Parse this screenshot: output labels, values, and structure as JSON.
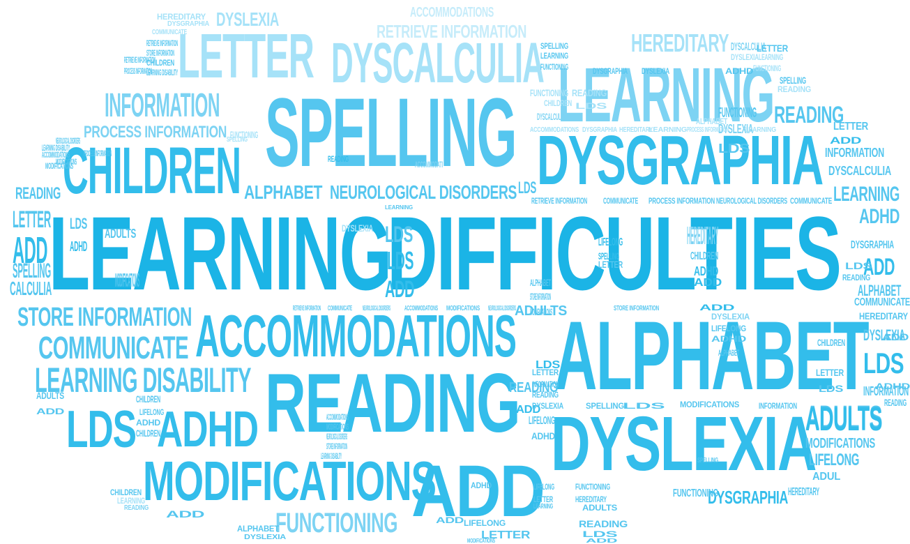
{
  "words": [
    {
      "text": "LEARNING",
      "style": "c1"
    },
    {
      "text": "DIFFICULTIES",
      "style": "c1"
    },
    {
      "text": "SPELLING",
      "style": "c3"
    },
    {
      "text": "LEARNING",
      "style": "c4"
    },
    {
      "text": "DYSGRAPHIA",
      "style": "c2"
    },
    {
      "text": "CHILDREN",
      "style": "c2"
    },
    {
      "text": "LETTER",
      "style": "c5"
    },
    {
      "text": "DYSCALCULIA",
      "style": "c5"
    },
    {
      "text": "INFORMATION",
      "style": "c4"
    },
    {
      "text": "ALPHABET",
      "style": "c2"
    },
    {
      "text": "ACCOMMODATIONS",
      "style": "c2"
    },
    {
      "text": "READING",
      "style": "c2"
    },
    {
      "text": "DYSLEXIA",
      "style": "c2"
    },
    {
      "text": "MODIFICATIONS",
      "style": "c2"
    },
    {
      "text": "ADD",
      "style": "c2"
    },
    {
      "text": "LDS",
      "style": "c2"
    },
    {
      "text": "ADHD",
      "style": "c2"
    },
    {
      "text": "STORE INFORMATION",
      "style": "c3"
    },
    {
      "text": "COMMUNICATE",
      "style": "c3"
    },
    {
      "text": "LEARNING DISABILITY",
      "style": "c3"
    },
    {
      "text": "ADULTS",
      "style": "c3"
    },
    {
      "text": "LIFELONG",
      "style": "c3"
    },
    {
      "text": "FUNCTIONING",
      "style": "c4"
    },
    {
      "text": "DYSLEXIA",
      "style": "c5"
    },
    {
      "text": "RETRIEVE INFORMATION",
      "style": "c6"
    },
    {
      "text": "ACCOMMODATIONS",
      "style": "c6"
    },
    {
      "text": "HEREDITARY",
      "style": "c5"
    },
    {
      "text": "PROCESS INFORMATION",
      "style": "c4"
    },
    {
      "text": "ALPHABET",
      "style": "c3"
    },
    {
      "text": "NEUROLOGICAL DISORDERS",
      "style": "c3"
    },
    {
      "text": "READING",
      "style": "c3"
    },
    {
      "text": "LEARNING",
      "style": "c3"
    },
    {
      "text": "INFORMATION",
      "style": "c3"
    },
    {
      "text": "DYSCALCULIA",
      "style": "c3"
    },
    {
      "text": "ADHD",
      "style": "c3"
    },
    {
      "text": "DYSGRAPHIA",
      "style": "c3"
    },
    {
      "text": "ADD",
      "style": "c2"
    },
    {
      "text": "ALPHABET",
      "style": "c3"
    },
    {
      "text": "COMMUNICATE",
      "style": "c3"
    },
    {
      "text": "HEREDITARY",
      "style": "c3"
    },
    {
      "text": "DYSLEXIA",
      "style": "c3"
    },
    {
      "text": "CHILDREN",
      "style": "c3"
    },
    {
      "text": "LDS",
      "style": "c2"
    },
    {
      "text": "LETTER",
      "style": "c3"
    },
    {
      "text": "INFORMATION",
      "style": "c3"
    },
    {
      "text": "READING",
      "style": "c3"
    },
    {
      "text": "ADULTS",
      "style": "c2"
    },
    {
      "text": "MODIFICATIONS",
      "style": "c3"
    },
    {
      "text": "LIFELONG",
      "style": "c3"
    },
    {
      "text": "ADUL",
      "style": "c3"
    },
    {
      "text": "DYSGRAPHIA",
      "style": "c2"
    },
    {
      "text": "HEREDITARY",
      "style": "c3"
    },
    {
      "text": "FUNCTIONING",
      "style": "c3"
    },
    {
      "text": "SPELLING",
      "style": "c3"
    },
    {
      "text": "LDS",
      "style": "c3"
    },
    {
      "text": "RETRIEVE INFORMATION",
      "style": "c3"
    },
    {
      "text": "COMMUNICATE",
      "style": "c3"
    },
    {
      "text": "PROCESS INFORMATION",
      "style": "c3"
    },
    {
      "text": "NEUROLOGICAL DISORDERS",
      "style": "c3"
    },
    {
      "text": "COMMUNICATE",
      "style": "c3"
    },
    {
      "text": "LEARNING",
      "style": "c3"
    },
    {
      "text": "LDS",
      "style": "c3"
    },
    {
      "text": "LDS",
      "style": "c2"
    },
    {
      "text": "ADD",
      "style": "c2"
    },
    {
      "text": "SPELLING",
      "style": "c3"
    },
    {
      "text": "CALCULIA",
      "style": "c3"
    },
    {
      "text": "READING",
      "style": "c3"
    },
    {
      "text": "LETTER",
      "style": "c3"
    },
    {
      "text": "ADD",
      "style": "c2"
    },
    {
      "text": "ADULTS",
      "style": "c3"
    },
    {
      "text": "LDS",
      "style": "c3"
    },
    {
      "text": "ADHD",
      "style": "c2"
    },
    {
      "text": "FUNCTIONING",
      "style": "c3"
    },
    {
      "text": "DYSLEXIA",
      "style": "c4"
    },
    {
      "text": "LDS",
      "style": "c3"
    },
    {
      "text": "DYSCALCULIA",
      "style": "c4"
    },
    {
      "text": "HEREDITARY",
      "style": "c4"
    },
    {
      "text": "CHILDREN",
      "style": "c3"
    },
    {
      "text": "ADHD",
      "style": "c2"
    },
    {
      "text": "ADD",
      "style": "c2"
    },
    {
      "text": "LIFELONG",
      "style": "c2"
    },
    {
      "text": "SPELLING",
      "style": "c2"
    },
    {
      "text": "LETTER",
      "style": "c3"
    },
    {
      "text": "ALPHABET",
      "style": "c3"
    },
    {
      "text": "STORE INFORMATION",
      "style": "c3"
    },
    {
      "text": "MODIFICATIONS",
      "style": "c3"
    },
    {
      "text": "ADD",
      "style": "c2"
    },
    {
      "text": "DYSLEXIA",
      "style": "c4"
    },
    {
      "text": "LIFELONG",
      "style": "c3"
    },
    {
      "text": "ADHD",
      "style": "c3"
    },
    {
      "text": "ALPHABET",
      "style": "c3"
    },
    {
      "text": "ADULTS",
      "style": "c3"
    },
    {
      "text": "LDS",
      "style": "c2"
    },
    {
      "text": "READING",
      "style": "c3"
    },
    {
      "text": "ADD",
      "style": "c2"
    },
    {
      "text": "LIFELONG",
      "style": "c3"
    },
    {
      "text": "ADHD",
      "style": "c3"
    },
    {
      "text": "MODIFICATIONS",
      "style": "c3"
    },
    {
      "text": "ADULTS",
      "style": "c3"
    },
    {
      "text": "CHILDREN",
      "style": "c3"
    },
    {
      "text": "LIFELONG",
      "style": "c3"
    },
    {
      "text": "ADHD",
      "style": "c3"
    },
    {
      "text": "ADD",
      "style": "c3"
    },
    {
      "text": "CHILDREN",
      "style": "c3"
    },
    {
      "text": "ACCOMMODATIONS",
      "style": "c3"
    },
    {
      "text": "MODIFICATIONS",
      "style": "c3"
    },
    {
      "text": "NEUROLOGICAL DISORDERS",
      "style": "c3"
    },
    {
      "text": "STORE INFORMATION",
      "style": "c3"
    },
    {
      "text": "LEARNING DISABILITY",
      "style": "c3"
    },
    {
      "text": "LETTER",
      "style": "c3"
    },
    {
      "text": "INFORMATION",
      "style": "c3"
    },
    {
      "text": "READING",
      "style": "c3"
    },
    {
      "text": "DYSLEXIA",
      "style": "c3"
    },
    {
      "text": "SPELLING",
      "style": "c3"
    },
    {
      "text": "LDS",
      "style": "c3"
    },
    {
      "text": "MODIFICATIONS",
      "style": "c3"
    },
    {
      "text": "INFORMATION",
      "style": "c3"
    },
    {
      "text": "LDS",
      "style": "c3"
    },
    {
      "text": "ADD",
      "style": "c3"
    },
    {
      "text": "ADHD",
      "style": "c3"
    },
    {
      "text": "LIFELONG",
      "style": "c3"
    },
    {
      "text": "LETTER",
      "style": "c3"
    },
    {
      "text": "LEARNING",
      "style": "c3"
    },
    {
      "text": "FUNCTIONING",
      "style": "c3"
    },
    {
      "text": "HEREDITARY",
      "style": "c3"
    },
    {
      "text": "ADULTS",
      "style": "c3"
    },
    {
      "text": "READING",
      "style": "c3"
    },
    {
      "text": "LDS",
      "style": "c3"
    },
    {
      "text": "ADD",
      "style": "c3"
    },
    {
      "text": "LIFELONG",
      "style": "c3"
    },
    {
      "text": "LETTER",
      "style": "c3"
    },
    {
      "text": "MODIFICATIONS",
      "style": "c3"
    },
    {
      "text": "ADD",
      "style": "c3"
    },
    {
      "text": "ADHD",
      "style": "c3"
    },
    {
      "text": "ALPHABET",
      "style": "c3"
    },
    {
      "text": "DYSLEXIA",
      "style": "c3"
    },
    {
      "text": "ADD",
      "style": "c3"
    },
    {
      "text": "CHILDREN",
      "style": "c3"
    },
    {
      "text": "LEARNING",
      "style": "c5"
    },
    {
      "text": "READING",
      "style": "c4"
    },
    {
      "text": "ACCOMMODATI",
      "style": "c4"
    },
    {
      "text": "READING",
      "style": "c2"
    },
    {
      "text": "DYSLEXIA",
      "style": "c5"
    },
    {
      "text": "LDS",
      "style": "c3"
    },
    {
      "text": "READING",
      "style": "c3"
    },
    {
      "text": "LETTER",
      "style": "c3"
    },
    {
      "text": "ADD",
      "style": "c2"
    },
    {
      "text": "SPELLING",
      "style": "c3"
    },
    {
      "text": "READING",
      "style": "c5"
    },
    {
      "text": "LEARNING",
      "style": "c5"
    },
    {
      "text": "PROCESS INFORMATION",
      "style": "c5"
    },
    {
      "text": "LEARNING",
      "style": "c5"
    },
    {
      "text": "FUNCTIONING",
      "style": "c5"
    },
    {
      "text": "HEREDITARY",
      "style": "c5"
    },
    {
      "text": "DYSGRAPHIA",
      "style": "c5"
    },
    {
      "text": "COMMUNICATE",
      "style": "c5"
    },
    {
      "text": "SPELLING",
      "style": "c5"
    },
    {
      "text": "FUNCTIONING",
      "style": "c5"
    },
    {
      "text": "READING",
      "style": "c5"
    },
    {
      "text": "LDS",
      "style": "c5"
    },
    {
      "text": "CHILDREN",
      "style": "c5"
    },
    {
      "text": "ACCOMMODATIONS",
      "style": "c5"
    },
    {
      "text": "DYSGRAPHIA",
      "style": "c5"
    },
    {
      "text": "HEREDITARY",
      "style": "c5"
    },
    {
      "text": "ALPHABET",
      "style": "c5"
    },
    {
      "text": "DYSCALCULIA",
      "style": "c4"
    },
    {
      "text": "LETTER",
      "style": "c3"
    },
    {
      "text": "DYSLEXIA",
      "style": "c5"
    },
    {
      "text": "LEARNING",
      "style": "c5"
    },
    {
      "text": "FUNCTIONING",
      "style": "c5"
    },
    {
      "text": "ADHD",
      "style": "c3"
    },
    {
      "text": "DYSLEXIA",
      "style": "c3"
    },
    {
      "text": "DYSGRAPHIA",
      "style": "c3"
    },
    {
      "text": "SPELLING",
      "style": "c3"
    },
    {
      "text": "LEARNING",
      "style": "c3"
    },
    {
      "text": "FUNCTIONING",
      "style": "c3"
    },
    {
      "text": "RETRIEVE INFORMATION",
      "style": "c3"
    },
    {
      "text": "STORE INFORMATION",
      "style": "c3"
    },
    {
      "text": "CHILDREN",
      "style": "c3"
    },
    {
      "text": "LEARNING DISABILITY",
      "style": "c3"
    },
    {
      "text": "RETRIEVE INFORMATION",
      "style": "c3"
    },
    {
      "text": "PROCESS INFORMATION",
      "style": "c3"
    },
    {
      "text": "NEUROLOGICAL DISORDERS",
      "style": "c3"
    },
    {
      "text": "LEARNING DISABILITY",
      "style": "c3"
    },
    {
      "text": "ACCOMMODATIONS",
      "style": "c3"
    },
    {
      "text": "MODIFICATIONS",
      "style": "c3"
    },
    {
      "text": "PROCESS INFORMATION",
      "style": "c3"
    },
    {
      "text": "MODIFICATIONS",
      "style": "c3"
    },
    {
      "text": "RETRIEVE INFORMATION",
      "style": "c3"
    },
    {
      "text": "COMMUNICATE",
      "style": "c3"
    },
    {
      "text": "NEUROLOGICAL DISORDERS",
      "style": "c3"
    },
    {
      "text": "ACCOMMODATIONS",
      "style": "c3"
    },
    {
      "text": "MODIFICATIONS",
      "style": "c3"
    },
    {
      "text": "NEUROLOGICAL DISORDERS",
      "style": "c3"
    },
    {
      "text": "STORE INFORMATION",
      "style": "c3"
    },
    {
      "text": "LEARNING DISABILITY",
      "style": "c3"
    },
    {
      "text": "COMMUNICATE",
      "style": "c3"
    },
    {
      "text": "READING",
      "style": "c3"
    },
    {
      "text": "RETRIEVE INFORMATION",
      "style": "c3"
    },
    {
      "text": "LEARNING DISABILITY",
      "style": "c3"
    },
    {
      "text": "HEREDITARY",
      "style": "c3"
    },
    {
      "text": "LDS",
      "style": "c3"
    },
    {
      "text": "FUNCTIONING",
      "style": "c3"
    },
    {
      "text": "LEARNING",
      "style": "c3"
    },
    {
      "text": "INFORMATION",
      "style": "c3"
    },
    {
      "text": "CHILDREN",
      "style": "c3"
    },
    {
      "text": "SPELLING",
      "style": "c3"
    },
    {
      "text": "LDS",
      "style": "c3"
    },
    {
      "text": "ADULTS",
      "style": "c3"
    },
    {
      "text": "LEARNING",
      "style": "c3"
    }
  ]
}
